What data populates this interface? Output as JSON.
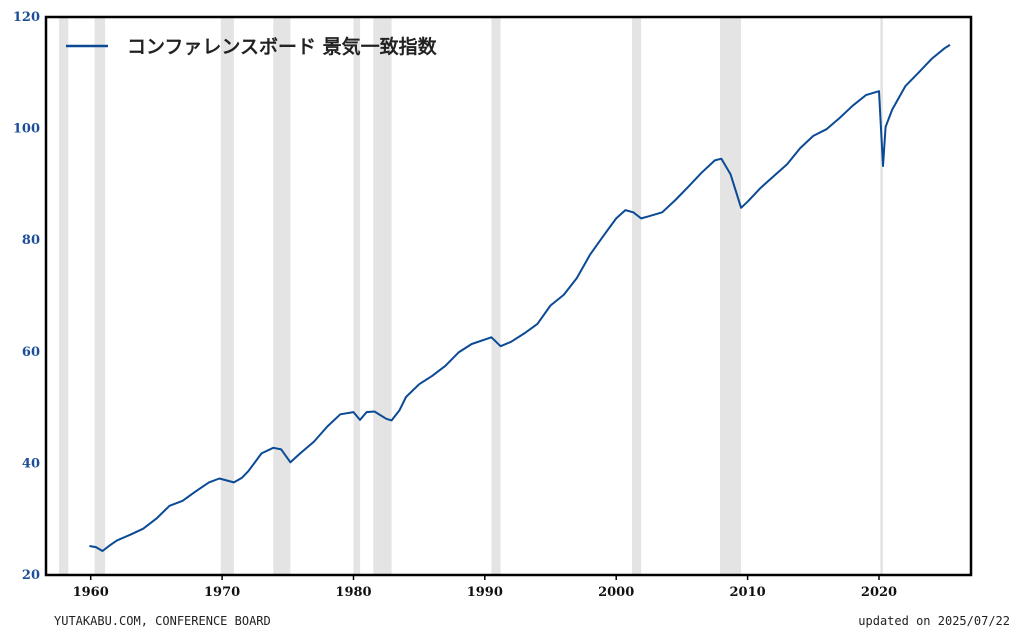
{
  "chart_data": {
    "type": "line",
    "title": "",
    "xlabel": "",
    "ylabel": "",
    "xlim": [
      1956.6,
      2027.0
    ],
    "ylim": [
      20,
      120
    ],
    "grid": false,
    "legend_placement": "top-left",
    "x_ticks": [
      1960,
      1970,
      1980,
      1990,
      2000,
      2010,
      2020
    ],
    "y_ticks": [
      20,
      40,
      60,
      80,
      100,
      120
    ],
    "recessions": [
      [
        1957.6,
        1958.3
      ],
      [
        1960.3,
        1961.1
      ],
      [
        1969.9,
        1970.9
      ],
      [
        1973.9,
        1975.2
      ],
      [
        1980.0,
        1980.5
      ],
      [
        1981.5,
        1982.9
      ],
      [
        1990.5,
        1991.2
      ],
      [
        2001.2,
        2001.9
      ],
      [
        2007.9,
        2009.5
      ],
      [
        2020.1,
        2020.3
      ]
    ],
    "series": [
      {
        "name": "コンファレンスボード 景気一致指数",
        "color": "#0b4a94",
        "points": [
          [
            1959.9,
            25.2
          ],
          [
            1960.4,
            25.0
          ],
          [
            1960.9,
            24.3
          ],
          [
            1961.5,
            25.4
          ],
          [
            1962.0,
            26.2
          ],
          [
            1963.0,
            27.2
          ],
          [
            1964.0,
            28.3
          ],
          [
            1965.0,
            30.1
          ],
          [
            1966.0,
            32.4
          ],
          [
            1967.0,
            33.3
          ],
          [
            1968.0,
            35.0
          ],
          [
            1969.0,
            36.6
          ],
          [
            1969.8,
            37.3
          ],
          [
            1970.9,
            36.6
          ],
          [
            1971.5,
            37.4
          ],
          [
            1972.0,
            38.6
          ],
          [
            1973.0,
            41.8
          ],
          [
            1973.9,
            42.8
          ],
          [
            1974.5,
            42.5
          ],
          [
            1975.2,
            40.2
          ],
          [
            1976.0,
            41.9
          ],
          [
            1977.0,
            43.9
          ],
          [
            1978.0,
            46.6
          ],
          [
            1979.0,
            48.8
          ],
          [
            1980.0,
            49.2
          ],
          [
            1980.5,
            47.8
          ],
          [
            1981.0,
            49.2
          ],
          [
            1981.6,
            49.3
          ],
          [
            1982.5,
            48.0
          ],
          [
            1982.9,
            47.7
          ],
          [
            1983.5,
            49.5
          ],
          [
            1984.0,
            51.9
          ],
          [
            1985.0,
            54.2
          ],
          [
            1986.0,
            55.7
          ],
          [
            1987.0,
            57.5
          ],
          [
            1988.0,
            59.9
          ],
          [
            1989.0,
            61.4
          ],
          [
            1990.5,
            62.6
          ],
          [
            1991.2,
            61.0
          ],
          [
            1992.0,
            61.8
          ],
          [
            1993.0,
            63.3
          ],
          [
            1994.0,
            65.0
          ],
          [
            1995.0,
            68.3
          ],
          [
            1996.0,
            70.2
          ],
          [
            1997.0,
            73.2
          ],
          [
            1998.0,
            77.4
          ],
          [
            1999.0,
            80.7
          ],
          [
            2000.0,
            83.9
          ],
          [
            2000.7,
            85.4
          ],
          [
            2001.3,
            85.0
          ],
          [
            2001.9,
            83.9
          ],
          [
            2002.5,
            84.3
          ],
          [
            2003.5,
            85.0
          ],
          [
            2004.5,
            87.2
          ],
          [
            2005.5,
            89.6
          ],
          [
            2006.5,
            92.1
          ],
          [
            2007.5,
            94.3
          ],
          [
            2008.0,
            94.6
          ],
          [
            2008.7,
            91.8
          ],
          [
            2009.5,
            85.8
          ],
          [
            2010.0,
            86.9
          ],
          [
            2011.0,
            89.4
          ],
          [
            2012.0,
            91.5
          ],
          [
            2013.0,
            93.6
          ],
          [
            2014.0,
            96.5
          ],
          [
            2015.0,
            98.7
          ],
          [
            2016.0,
            99.9
          ],
          [
            2017.0,
            101.9
          ],
          [
            2018.0,
            104.1
          ],
          [
            2019.0,
            106.0
          ],
          [
            2020.0,
            106.7
          ],
          [
            2020.3,
            93.3
          ],
          [
            2020.5,
            100.3
          ],
          [
            2021.0,
            103.4
          ],
          [
            2022.0,
            107.6
          ],
          [
            2023.0,
            110.0
          ],
          [
            2024.0,
            112.5
          ],
          [
            2025.0,
            114.4
          ],
          [
            2025.4,
            115.0
          ]
        ]
      }
    ]
  },
  "footer": {
    "source": "YUTAKABU.COM, CONFERENCE BOARD",
    "updated": "updated on 2025/07/22"
  },
  "colors": {
    "line": "#0b4a94",
    "recession_band": "#e4e4e4",
    "y_tick_text": "#1b4e96",
    "frame": "#000000"
  }
}
